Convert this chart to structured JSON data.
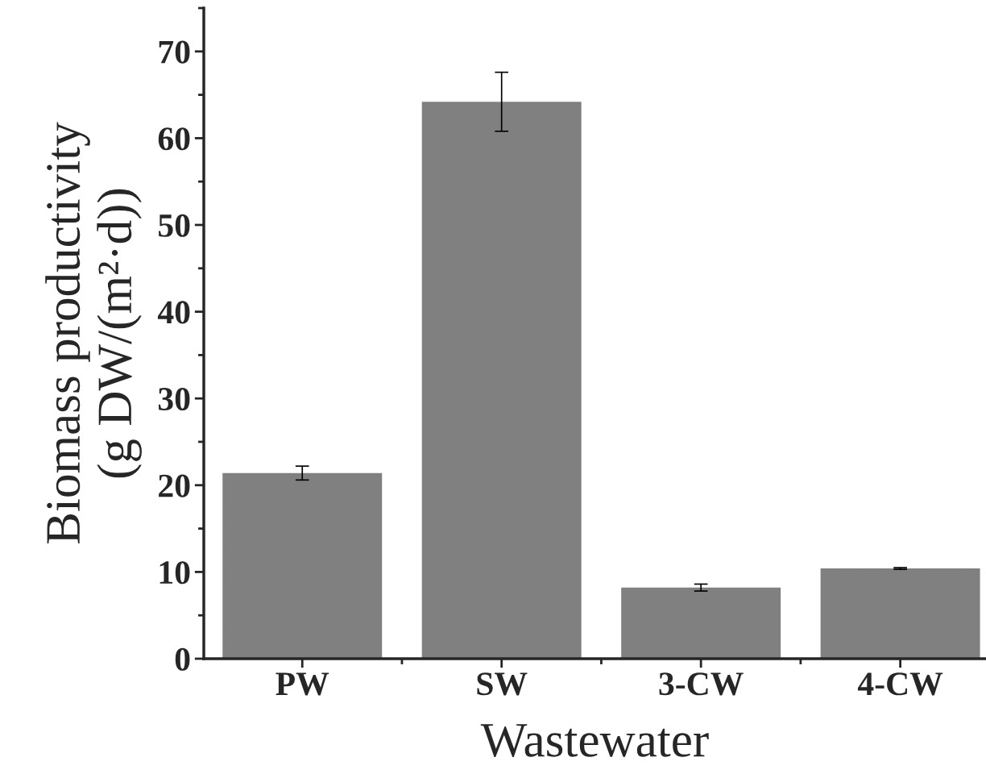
{
  "chart_data": {
    "type": "bar",
    "xlabel": "Wastewater",
    "ylabel": "Biomass productivity\n(g DW/(m²·d))",
    "categories": [
      "PW",
      "SW",
      "3-CW",
      "4-CW"
    ],
    "values": [
      21.4,
      64.2,
      8.2,
      10.4
    ],
    "errors": [
      0.8,
      3.4,
      0.4,
      0.1
    ],
    "color": "#808080",
    "ylim": [
      0,
      75
    ],
    "yticks": [
      0,
      10,
      20,
      30,
      40,
      50,
      60,
      70
    ],
    "grid": false
  }
}
